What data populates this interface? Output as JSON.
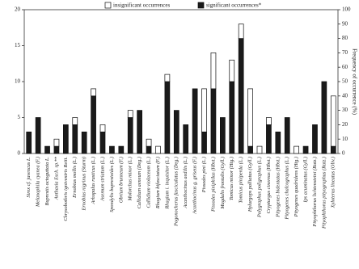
{
  "chart_data": {
    "type": "stacked_bar",
    "categories": [
      "Sirex cf. juvencus L.",
      "Melanophila cyanea (F.)",
      "Buprestis octoguttata L.",
      "Anthaxia Esch. sp.**",
      "Chrysobothris igniventris Reitt.",
      "Ernobius mollis (L.)",
      "Ernobius nigrinus (Sturm)",
      "Arhopalus rusticus (L.)",
      "Asemum striatum (L.)",
      "Spondylis buprestoides (L.)",
      "Obrium brunneum (F.)",
      "Molorchus minor (L.)",
      "Callidium aeneum (Deg.)",
      "Callidium violaceum (L.)",
      "Rhagium bifasciatum (F.)",
      "Rhagium i. inquisitor (L.)",
      "Pogonocherus fasciculatus (Deg.)",
      "Acanthocinus aedilis (L.)",
      "Acanthocinus g. griseus (F.)",
      "Pissodes pini (L.)",
      "Pissodes piniphilus (Hbst.)",
      "Magdalis frontalis (Gyll.)",
      "Tomicus minor (Htg.)",
      "Tomicus piniperda (L.)",
      "Hylurgops palliatus (Gyll.)",
      "Polygraphus poligraphus (L.)",
      "Crypturgus cinereus (Hbst.)",
      "Pityogenes bidentatus (Hbst.)",
      "Pityogenes chalcographus (L.)",
      "Pityogenes quadridens (Htg.)",
      "Ips acuminatus (Gyll.)",
      "Pityophthorus lichtensteini (Ratz.)",
      "Pityophthorus pityographus (Ratz.)",
      "Xyloterus lineatus (Oliv.)"
    ],
    "series": [
      {
        "name": "significant occurrences*",
        "color": "#1a1a1a",
        "values": [
          3,
          5,
          1,
          1,
          4,
          4,
          3,
          8,
          3,
          1,
          1,
          5,
          6,
          1,
          0,
          10,
          6,
          4,
          9,
          3,
          9,
          5,
          10,
          16,
          1,
          0,
          4,
          3,
          5,
          0,
          1,
          4,
          10,
          1
        ]
      },
      {
        "name": "insignificant occurrences",
        "color": "#ffffff",
        "values": [
          0,
          0,
          0,
          1,
          0,
          1,
          0,
          1,
          1,
          0,
          0,
          1,
          0,
          1,
          1,
          1,
          0,
          0,
          0,
          6,
          5,
          0,
          3,
          2,
          8,
          1,
          1,
          0,
          0,
          1,
          0,
          0,
          0,
          7
        ]
      }
    ],
    "ylim": [
      0,
      20
    ],
    "yticks": [
      0,
      5,
      10,
      15,
      20
    ],
    "y2label": "Frequency of occurrence (%)",
    "y2lim": [
      0,
      100
    ],
    "y2ticks": [
      0,
      10,
      20,
      30,
      40,
      50,
      60,
      70,
      80,
      90,
      100
    ]
  }
}
